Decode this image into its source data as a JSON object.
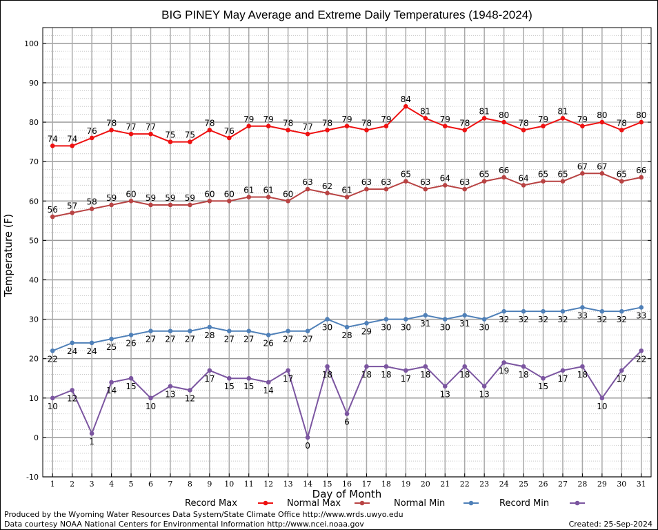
{
  "chart_data": {
    "type": "line",
    "title": "BIG PINEY May Average and Extreme Daily Temperatures (1948-2024)",
    "xlabel": "Day of Month",
    "ylabel": "Temperature (F)",
    "x": [
      1,
      2,
      3,
      4,
      5,
      6,
      7,
      8,
      9,
      10,
      11,
      12,
      13,
      14,
      15,
      16,
      17,
      18,
      19,
      20,
      21,
      22,
      23,
      24,
      25,
      26,
      27,
      28,
      29,
      30,
      31
    ],
    "xlim": [
      0.5,
      31.5
    ],
    "ylim": [
      -10,
      104
    ],
    "yticks": [
      -10,
      0,
      10,
      20,
      30,
      40,
      50,
      60,
      70,
      80,
      90,
      100
    ],
    "grid": true,
    "legend_position": "bottom",
    "series": [
      {
        "name": "Record Max",
        "color": "#ee1111",
        "label_pos": "above",
        "values": [
          74,
          74,
          76,
          78,
          77,
          77,
          75,
          75,
          78,
          76,
          79,
          79,
          78,
          77,
          78,
          79,
          78,
          79,
          84,
          81,
          79,
          78,
          81,
          80,
          78,
          79,
          81,
          79,
          80,
          78,
          80
        ]
      },
      {
        "name": "Normal Max",
        "color": "#b84343",
        "label_pos": "above",
        "values": [
          56,
          57,
          58,
          59,
          60,
          59,
          59,
          59,
          60,
          60,
          61,
          61,
          60,
          63,
          62,
          61,
          63,
          63,
          65,
          63,
          64,
          63,
          65,
          66,
          64,
          65,
          65,
          67,
          67,
          65,
          66
        ]
      },
      {
        "name": "Normal Min",
        "color": "#4f80b8",
        "label_pos": "below",
        "values": [
          22,
          24,
          24,
          25,
          26,
          27,
          27,
          27,
          28,
          27,
          27,
          26,
          27,
          27,
          30,
          28,
          29,
          30,
          30,
          31,
          30,
          31,
          30,
          32,
          32,
          32,
          32,
          33,
          32,
          32,
          33
        ]
      },
      {
        "name": "Record Min",
        "color": "#7b55a0",
        "label_pos": "below",
        "values": [
          10,
          12,
          1,
          14,
          15,
          10,
          13,
          12,
          17,
          15,
          15,
          14,
          17,
          0,
          18,
          6,
          18,
          18,
          17,
          18,
          13,
          18,
          13,
          19,
          18,
          15,
          17,
          18,
          10,
          17,
          22
        ]
      }
    ]
  },
  "footer": {
    "produced_by": "Produced by the Wyoming Water Resources Data System/State Climate Office http://www.wrds.uwyo.edu",
    "courtesy": "Data courtesy NOAA National Centers for Environmental Information http://www.ncei.noaa.gov",
    "created": "Created: 25-Sep-2024"
  }
}
